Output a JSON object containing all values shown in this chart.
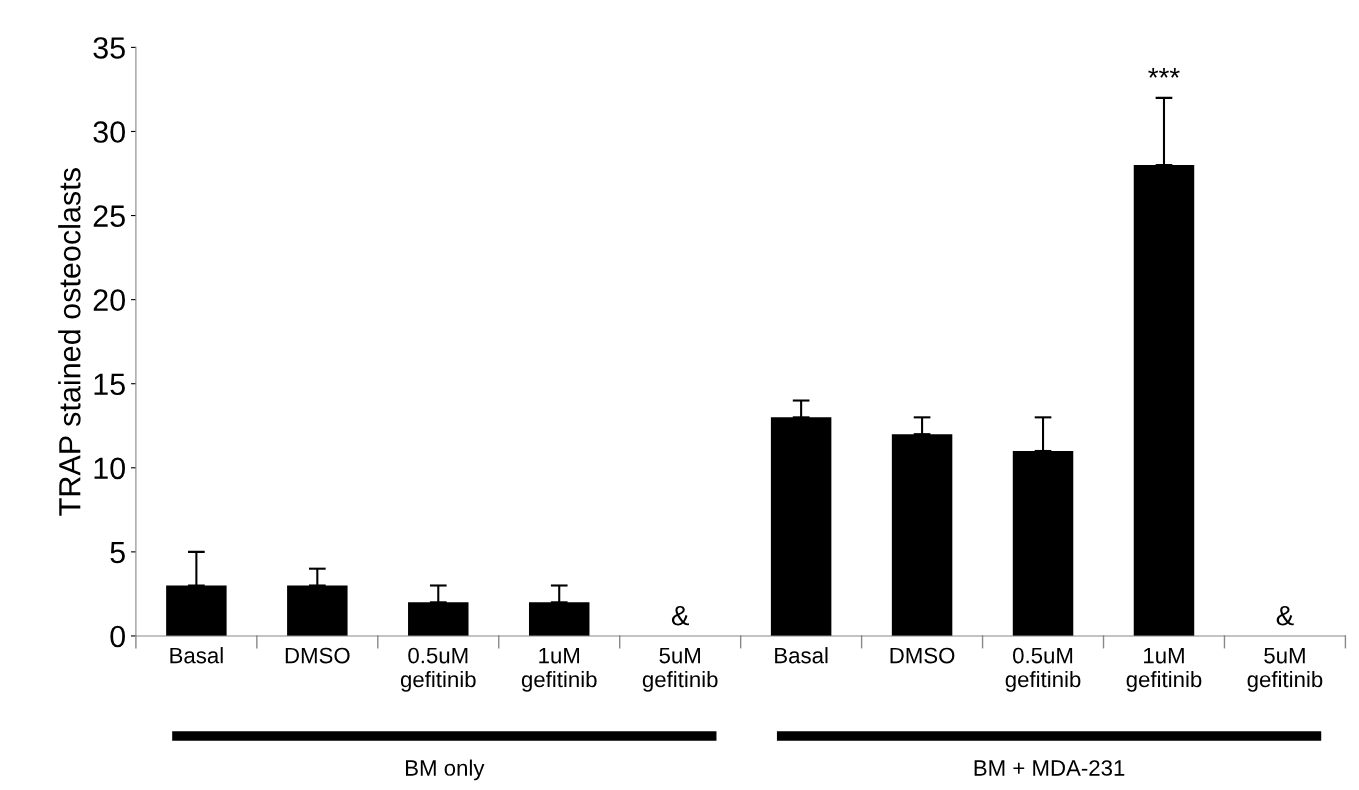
{
  "chart_data": {
    "type": "bar",
    "ylabel": "TRAP stained osteoclasts",
    "categories": [
      "Basal",
      "DMSO",
      "0.5uM\ngefitinib",
      "1uM\ngefitinib",
      "5uM\ngefitinib",
      "Basal",
      "DMSO",
      "0.5uM\ngefitinib",
      "1uM\ngefitinib",
      "5uM\ngefitinib"
    ],
    "values": [
      3,
      3,
      2,
      2,
      null,
      13,
      12,
      11,
      28,
      null
    ],
    "errors": [
      [
        3,
        5
      ],
      [
        3,
        4
      ],
      [
        2,
        3
      ],
      [
        2,
        3
      ],
      null,
      [
        13,
        14
      ],
      [
        12,
        13
      ],
      [
        11,
        13
      ],
      [
        28,
        32
      ],
      null
    ],
    "value_labels": [
      null,
      null,
      null,
      null,
      "&",
      null,
      null,
      null,
      "***",
      "&"
    ],
    "color": "#000000",
    "ylim": [
      0,
      35
    ],
    "yticks": [
      0,
      5,
      10,
      15,
      20,
      25,
      30,
      35
    ],
    "grid": false,
    "annotations": [
      "BM only",
      "BM + MDA-231"
    ]
  }
}
